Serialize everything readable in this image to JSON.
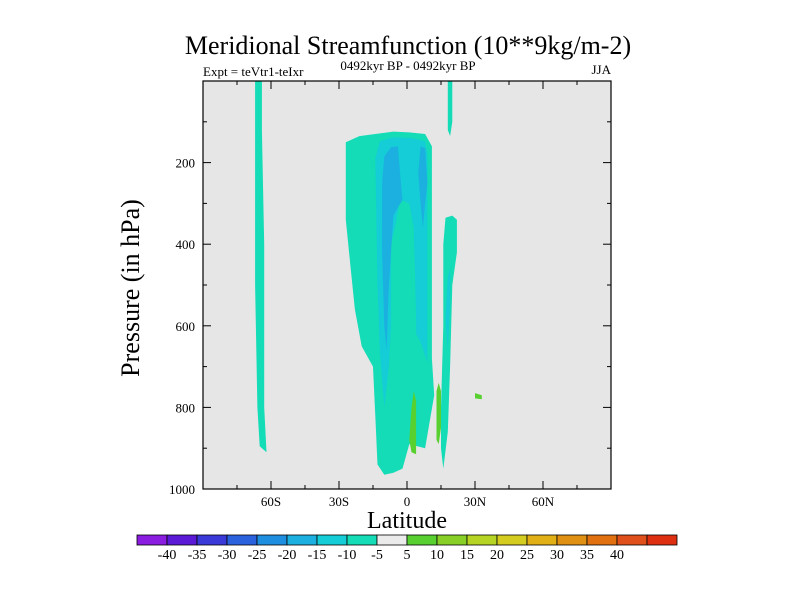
{
  "chart_data": {
    "type": "contour",
    "title": "Meridional Streamfunction (10**9kg/m-2)",
    "subtitle": "0492kyr BP - 0492kyr BP",
    "left_label": "Expt = teVtr1-teIxr",
    "right_label": "JJA",
    "xlabel": "Latitude",
    "ylabel": "Pressure (in hPa)",
    "xlim": [
      -90,
      90
    ],
    "ylim": [
      1000,
      0
    ],
    "xticks": [
      {
        "value": -60,
        "label": "60S"
      },
      {
        "value": -30,
        "label": "30S"
      },
      {
        "value": 0,
        "label": "0"
      },
      {
        "value": 30,
        "label": "30N"
      },
      {
        "value": 60,
        "label": "60N"
      }
    ],
    "yticks": [
      {
        "value": 200,
        "label": "200"
      },
      {
        "value": 400,
        "label": "400"
      },
      {
        "value": 600,
        "label": "600"
      },
      {
        "value": 800,
        "label": "800"
      },
      {
        "value": 1000,
        "label": "1000"
      }
    ],
    "background_color": "#e6e6e6",
    "colorbar": {
      "colors": [
        "#8a1de0",
        "#5a1ad6",
        "#3a3ad8",
        "#2a62de",
        "#1e8ee0",
        "#1bb0e0",
        "#14cdd6",
        "#13dcb6",
        "#ebebeb",
        "#58d030",
        "#88d028",
        "#b6d424",
        "#d4cc1e",
        "#e0b016",
        "#e09012",
        "#e07010",
        "#e0501a",
        "#de3010"
      ],
      "labels": [
        "-40",
        "-35",
        "-30",
        "-25",
        "-20",
        "-15",
        "-10",
        "-5",
        "5",
        "10",
        "15",
        "20",
        "25",
        "30",
        "35",
        "40"
      ]
    },
    "regions": [
      {
        "name": "strip-60s",
        "fill": "#13dcb6",
        "points": [
          [
            -67,
            0
          ],
          [
            -64,
            0
          ],
          [
            -64,
            120
          ],
          [
            -63,
            400
          ],
          [
            -63,
            800
          ],
          [
            -62,
            910
          ],
          [
            -65,
            895
          ],
          [
            -66,
            800
          ],
          [
            -67,
            500
          ],
          [
            -67,
            200
          ]
        ]
      },
      {
        "name": "strip-20n-top",
        "fill": "#13dcb6",
        "points": [
          [
            18,
            0
          ],
          [
            20,
            0
          ],
          [
            20,
            100
          ],
          [
            19,
            135
          ],
          [
            18,
            120
          ]
        ]
      },
      {
        "name": "main-cell",
        "fill": "#13dcb6",
        "points": [
          [
            -27,
            340
          ],
          [
            -27,
            150
          ],
          [
            -21,
            135
          ],
          [
            -14,
            130
          ],
          [
            -6,
            124
          ],
          [
            1,
            126
          ],
          [
            8,
            130
          ],
          [
            11,
            160
          ],
          [
            11,
            330
          ],
          [
            11,
            680
          ],
          [
            12,
            770
          ],
          [
            8,
            900
          ],
          [
            1,
            890
          ],
          [
            -2,
            950
          ],
          [
            -6,
            960
          ],
          [
            -10,
            965
          ],
          [
            -13,
            940
          ],
          [
            -14,
            820
          ],
          [
            -15,
            700
          ],
          [
            -20,
            650
          ],
          [
            -23,
            560
          ],
          [
            -25,
            450
          ]
        ]
      },
      {
        "name": "cell-m10",
        "fill": "#14cdd6",
        "points": [
          [
            -14,
            190
          ],
          [
            -12,
            148
          ],
          [
            -6,
            138
          ],
          [
            2,
            140
          ],
          [
            8,
            148
          ],
          [
            9,
            180
          ],
          [
            9,
            310
          ],
          [
            9,
            600
          ],
          [
            9,
            690
          ],
          [
            6,
            640
          ],
          [
            4,
            620
          ],
          [
            4,
            580
          ],
          [
            3,
            360
          ],
          [
            1,
            300
          ],
          [
            -3,
            290
          ],
          [
            -5,
            350
          ],
          [
            -7,
            400
          ],
          [
            -7,
            600
          ],
          [
            -8,
            700
          ],
          [
            -10,
            800
          ],
          [
            -12,
            660
          ],
          [
            -13,
            500
          ]
        ]
      },
      {
        "name": "cell-m15",
        "fill": "#1bb0e0",
        "points": [
          [
            -11,
            250
          ],
          [
            -10,
            185
          ],
          [
            -7,
            162
          ],
          [
            -4,
            160
          ],
          [
            -3,
            230
          ],
          [
            -2,
            292
          ],
          [
            -4,
            310
          ],
          [
            -6,
            330
          ],
          [
            -8,
            500
          ],
          [
            -9,
            660
          ],
          [
            -10,
            600
          ],
          [
            -11,
            420
          ]
        ]
      },
      {
        "name": "cell-m15-right",
        "fill": "#1bb0e0",
        "points": [
          [
            5,
            225
          ],
          [
            6,
            160
          ],
          [
            8,
            165
          ],
          [
            9,
            250
          ],
          [
            8,
            300
          ],
          [
            7,
            360
          ],
          [
            6,
            300
          ]
        ]
      },
      {
        "name": "strip-20n",
        "fill": "#13dcb6",
        "points": [
          [
            17,
            335
          ],
          [
            20,
            330
          ],
          [
            22,
            340
          ],
          [
            22,
            420
          ],
          [
            20,
            500
          ],
          [
            19,
            700
          ],
          [
            18,
            860
          ],
          [
            16,
            950
          ],
          [
            15,
            900
          ],
          [
            15,
            800
          ],
          [
            16,
            600
          ],
          [
            16,
            400
          ]
        ]
      },
      {
        "name": "strip-20n-inner",
        "fill": "#14cdd6",
        "points": [
          [
            18,
            480
          ],
          [
            19,
            460
          ],
          [
            19,
            550
          ],
          [
            18,
            660
          ],
          [
            17,
            580
          ]
        ]
      },
      {
        "name": "green-left",
        "fill": "#58d030",
        "points": [
          [
            3,
            760
          ],
          [
            4,
            785
          ],
          [
            4,
            850
          ],
          [
            4,
            915
          ],
          [
            2,
            910
          ],
          [
            1,
            880
          ],
          [
            2,
            800
          ]
        ]
      },
      {
        "name": "green-right",
        "fill": "#58d030",
        "points": [
          [
            14,
            740
          ],
          [
            15,
            760
          ],
          [
            15,
            850
          ],
          [
            14,
            890
          ],
          [
            13,
            880
          ],
          [
            13,
            800
          ],
          [
            13,
            760
          ]
        ]
      },
      {
        "name": "green-dot",
        "fill": "#58d030",
        "points": [
          [
            30,
            765
          ],
          [
            33,
            770
          ],
          [
            33,
            780
          ],
          [
            30,
            778
          ]
        ]
      }
    ]
  }
}
